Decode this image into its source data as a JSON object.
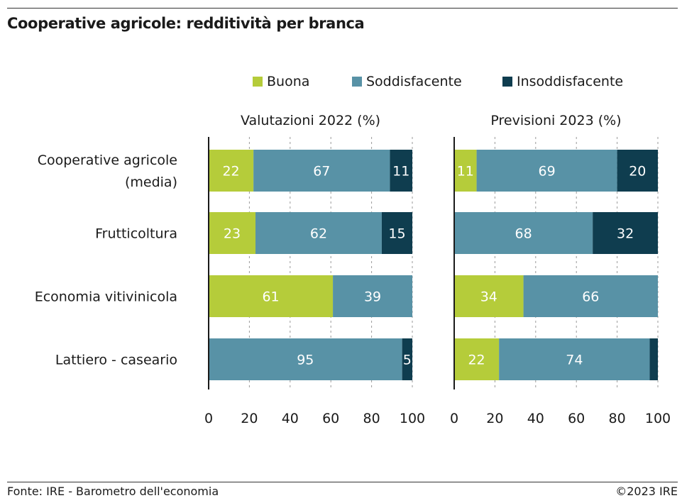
{
  "title": "Cooperative agricole: redditività per branca",
  "legend": [
    {
      "label": "Buona",
      "color": "#b5cc3a"
    },
    {
      "label": "Soddisfacente",
      "color": "#5892a6"
    },
    {
      "label": "Insoddisfacente",
      "color": "#0f3d4f"
    }
  ],
  "footer": {
    "source": "Fonte: IRE - Barometro dell'economia",
    "copyright": "©2023 IRE"
  },
  "chart_data": [
    {
      "type": "bar",
      "orientation": "horizontal",
      "stacked": true,
      "title": "Valutazioni 2022 (%)",
      "categories": [
        "Cooperative agricole (media)",
        "Frutticoltura",
        "Economia vitivinicola",
        "Lattiero - caseario"
      ],
      "category_lines": [
        [
          "Cooperative agricole",
          "(media)"
        ],
        [
          "Frutticoltura"
        ],
        [
          "Economia vitivinicola"
        ],
        [
          "Lattiero - caseario"
        ]
      ],
      "series": [
        {
          "name": "Buona",
          "values": [
            22,
            23,
            61,
            0
          ]
        },
        {
          "name": "Soddisfacente",
          "values": [
            67,
            62,
            39,
            95
          ]
        },
        {
          "name": "Insoddisfacente",
          "values": [
            11,
            15,
            0,
            5
          ]
        }
      ],
      "xlim": [
        0,
        100
      ],
      "xticks": [
        0,
        20,
        40,
        60,
        80,
        100
      ],
      "grid": true
    },
    {
      "type": "bar",
      "orientation": "horizontal",
      "stacked": true,
      "title": "Previsioni 2023 (%)",
      "categories": [
        "Cooperative agricole (media)",
        "Frutticoltura",
        "Economia vitivinicola",
        "Lattiero - caseario"
      ],
      "series": [
        {
          "name": "Buona",
          "values": [
            11,
            0,
            34,
            22
          ]
        },
        {
          "name": "Soddisfacente",
          "values": [
            69,
            68,
            66,
            74
          ]
        },
        {
          "name": "Insoddisfacente",
          "values": [
            20,
            32,
            0,
            4
          ]
        }
      ],
      "value_labels": [
        [
          "11",
          "69",
          "20"
        ],
        [
          "",
          "68",
          "32"
        ],
        [
          "34",
          "66",
          ""
        ],
        [
          "22",
          "74",
          ""
        ]
      ],
      "xlim": [
        0,
        100
      ],
      "xticks": [
        0,
        20,
        40,
        60,
        80,
        100
      ],
      "grid": true
    }
  ]
}
